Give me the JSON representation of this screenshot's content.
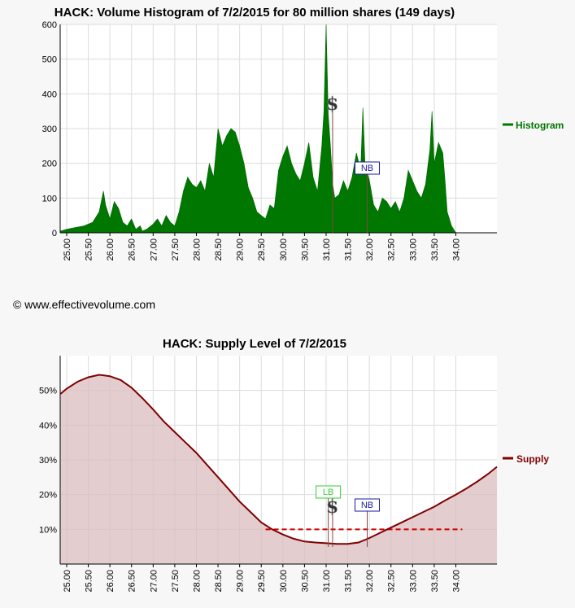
{
  "copyright": "© www.effectivevolume.com",
  "chart_data": [
    {
      "type": "area",
      "title": "HACK: Volume Histogram of 7/2/2015 for 80 million shares (149 days)",
      "ylim": [
        0,
        600
      ],
      "y_ticks": [
        "0",
        "100",
        "200",
        "300",
        "400",
        "500",
        "600"
      ],
      "xlim": [
        24.85,
        34.95
      ],
      "x_ticks": [
        "25.00",
        "25.50",
        "26.00",
        "26.50",
        "27.00",
        "27.50",
        "28.00",
        "28.50",
        "29.00",
        "29.50",
        "30.00",
        "30.50",
        "31.00",
        "31.50",
        "32.00",
        "32.50",
        "33.00",
        "33.50",
        "34.00"
      ],
      "grid": true,
      "legend_position": "right",
      "series": [
        {
          "name": "Histogram",
          "color": "#007700",
          "x": [
            24.86,
            25.0,
            25.2,
            25.4,
            25.6,
            25.75,
            25.85,
            25.9,
            25.95,
            26.0,
            26.1,
            26.2,
            26.3,
            26.4,
            26.5,
            26.6,
            26.7,
            26.75,
            26.85,
            27.0,
            27.1,
            27.2,
            27.3,
            27.4,
            27.5,
            27.6,
            27.7,
            27.8,
            27.9,
            28.0,
            28.1,
            28.2,
            28.3,
            28.4,
            28.5,
            28.6,
            28.7,
            28.8,
            28.9,
            29.0,
            29.1,
            29.2,
            29.3,
            29.4,
            29.5,
            29.6,
            29.7,
            29.8,
            29.9,
            30.0,
            30.1,
            30.2,
            30.3,
            30.4,
            30.5,
            30.6,
            30.7,
            30.8,
            30.9,
            30.95,
            31.0,
            31.05,
            31.1,
            31.15,
            31.2,
            31.3,
            31.4,
            31.5,
            31.6,
            31.7,
            31.8,
            31.85,
            31.9,
            32.0,
            32.1,
            32.2,
            32.3,
            32.4,
            32.5,
            32.6,
            32.7,
            32.8,
            32.9,
            33.0,
            33.1,
            33.2,
            33.3,
            33.4,
            33.45,
            33.5,
            33.6,
            33.7,
            33.75,
            33.8,
            33.9,
            34.0,
            34.9
          ],
          "values": [
            5,
            10,
            15,
            20,
            30,
            60,
            120,
            80,
            60,
            40,
            90,
            70,
            30,
            20,
            40,
            10,
            20,
            5,
            10,
            25,
            40,
            20,
            50,
            30,
            20,
            60,
            120,
            160,
            140,
            130,
            150,
            120,
            200,
            160,
            300,
            250,
            280,
            300,
            290,
            250,
            200,
            130,
            100,
            60,
            50,
            40,
            80,
            70,
            180,
            220,
            250,
            200,
            170,
            150,
            200,
            260,
            160,
            120,
            250,
            350,
            600,
            340,
            250,
            140,
            100,
            110,
            150,
            120,
            160,
            230,
            180,
            360,
            200,
            150,
            80,
            60,
            100,
            90,
            70,
            90,
            60,
            100,
            180,
            150,
            120,
            100,
            140,
            240,
            350,
            200,
            260,
            230,
            150,
            60,
            20,
            0,
            0
          ]
        }
      ],
      "markers": [
        {
          "label": "$",
          "x": 31.15,
          "color": "#333333"
        },
        {
          "label": "NB",
          "x": 31.95,
          "color": "#1a1aa6"
        }
      ]
    },
    {
      "type": "line",
      "title": "HACK: Supply Level of 7/2/2015",
      "ylim": [
        0,
        0.6
      ],
      "y_ticks": [
        "10%",
        "20%",
        "30%",
        "40%",
        "50%"
      ],
      "xlim": [
        24.85,
        34.95
      ],
      "x_ticks": [
        "25.00",
        "25.50",
        "26.00",
        "26.50",
        "27.00",
        "27.50",
        "28.00",
        "28.50",
        "29.00",
        "29.50",
        "30.00",
        "30.50",
        "31.00",
        "31.50",
        "32.00",
        "32.50",
        "33.00",
        "33.50",
        "34.00"
      ],
      "grid": true,
      "legend_position": "right",
      "series": [
        {
          "name": "Supply",
          "color": "#800000",
          "x": [
            24.86,
            25.0,
            25.25,
            25.5,
            25.75,
            26.0,
            26.25,
            26.5,
            26.75,
            27.0,
            27.25,
            27.5,
            27.75,
            28.0,
            28.25,
            28.5,
            28.75,
            29.0,
            29.25,
            29.5,
            29.75,
            30.0,
            30.25,
            30.5,
            30.75,
            31.0,
            31.25,
            31.5,
            31.75,
            32.0,
            32.25,
            32.5,
            32.75,
            33.0,
            33.25,
            33.5,
            33.75,
            34.0,
            34.25,
            34.5,
            34.75,
            34.95
          ],
          "values": [
            0.49,
            0.505,
            0.525,
            0.538,
            0.545,
            0.541,
            0.53,
            0.508,
            0.478,
            0.445,
            0.41,
            0.38,
            0.35,
            0.32,
            0.285,
            0.25,
            0.215,
            0.18,
            0.15,
            0.12,
            0.1,
            0.085,
            0.073,
            0.065,
            0.062,
            0.06,
            0.058,
            0.058,
            0.062,
            0.075,
            0.09,
            0.105,
            0.12,
            0.135,
            0.15,
            0.165,
            0.183,
            0.2,
            0.218,
            0.238,
            0.26,
            0.28
          ]
        }
      ],
      "reference_line": {
        "value": 0.1,
        "x_start": 29.6,
        "x_end": 34.15,
        "color": "#cc0000",
        "style": "dashed"
      },
      "markers": [
        {
          "label": "LB",
          "x": 31.05,
          "color": "#33cc33"
        },
        {
          "label": "$",
          "x": 31.15,
          "color": "#333333"
        },
        {
          "label": "NB",
          "x": 31.95,
          "color": "#1a1aa6"
        }
      ]
    }
  ]
}
